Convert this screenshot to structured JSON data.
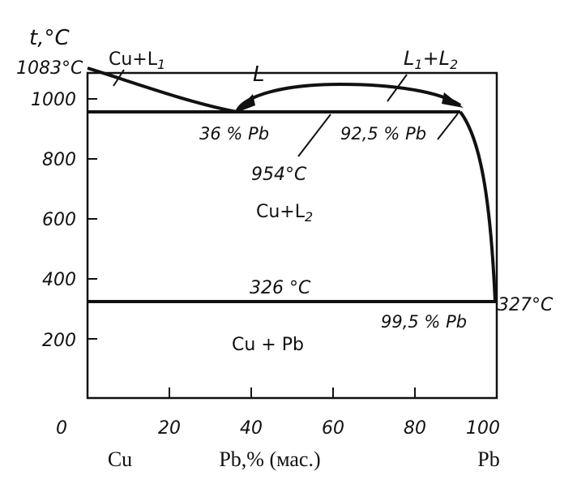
{
  "axes": {
    "y_title": "t,°C",
    "y_ticks": [
      "1000",
      "800",
      "600",
      "400",
      "200"
    ],
    "y_origin": "0",
    "x_ticks": [
      "20",
      "40",
      "60",
      "80",
      "100"
    ],
    "x_left_label": "Cu",
    "x_title": "Pb,% (мас.)",
    "x_right_label": "Pb"
  },
  "points": {
    "cu_melting": "1083°C",
    "monotectic_temp": "954°C",
    "monotectic_left": "36 % Pb",
    "monotectic_right": "92,5 % Pb",
    "eutectic_temp": "326 °C",
    "eutectic_comp": "99,5 % Pb",
    "pb_melting": "327°C"
  },
  "regions": {
    "liquid": "L",
    "cu_l1": {
      "main": "Cu+L",
      "sub": "1"
    },
    "l1_l2": {
      "a": "L",
      "a_sub": "1",
      "mid": "+L",
      "b_sub": "2"
    },
    "cu_l2": {
      "main": "Cu+L",
      "sub": "2"
    },
    "cu_pb": "Cu + Pb"
  }
}
